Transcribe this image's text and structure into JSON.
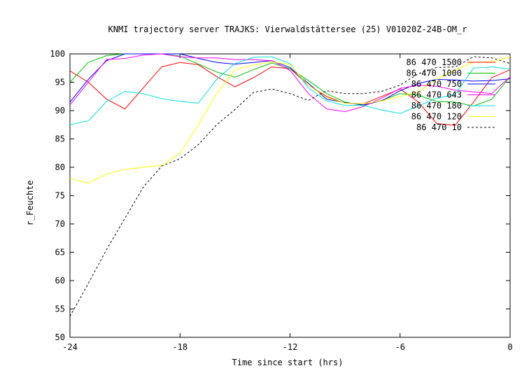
{
  "chart_data": {
    "type": "line",
    "title": "KNMI trajectory server TRAJKS: Vierwaldstättersee (25) V01020Z-24B-OM_r",
    "xlabel": "Time since start (hrs)",
    "ylabel": "r_Feuchte",
    "xlim": [
      -24,
      0
    ],
    "ylim": [
      50,
      100
    ],
    "xticks": [
      -24,
      -18,
      -12,
      -6,
      0
    ],
    "yticks": [
      50,
      55,
      60,
      65,
      70,
      75,
      80,
      85,
      90,
      95,
      100
    ],
    "legend_position": "top-right",
    "grid": false,
    "x": [
      -24,
      -23,
      -22,
      -21,
      -20,
      -19,
      -18,
      -17,
      -16,
      -15,
      -14,
      -13,
      -12,
      -11,
      -10,
      -9,
      -8,
      -7,
      -6,
      -5,
      -4,
      -3,
      -2,
      -1,
      0
    ],
    "series": [
      {
        "name": "86 470 1500",
        "color": "#ff0000",
        "values": [
          97,
          95,
          92,
          90.3,
          94,
          97.7,
          98.5,
          98.1,
          96,
          94.2,
          95.8,
          97.7,
          97.4,
          94.5,
          92.5,
          91.3,
          91.2,
          92.5,
          93.8,
          91.5,
          87.7,
          87.4,
          91.5,
          95.8,
          97.2
        ]
      },
      {
        "name": "86 470 1000",
        "color": "#00c000",
        "values": [
          95,
          98.5,
          99.7,
          100,
          100,
          100,
          99.6,
          98.2,
          96.8,
          95.9,
          97.2,
          98.4,
          97.4,
          95.3,
          93,
          91.5,
          90.9,
          91.8,
          93,
          92.7,
          91.6,
          91.5,
          90.8,
          92,
          96
        ]
      },
      {
        "name": "86 470 750",
        "color": "#0000ff",
        "values": [
          91.5,
          95.5,
          98.8,
          100,
          100,
          100,
          100,
          99.2,
          98.5,
          98.2,
          98.5,
          98.8,
          97.6,
          94.8,
          92,
          91.4,
          91,
          91.7,
          93.5,
          94.8,
          95.5,
          95.4,
          95.2,
          95.3,
          95.6
        ]
      },
      {
        "name": "86 470 643",
        "color": "#ff00ff",
        "values": [
          91,
          95,
          99,
          99.2,
          99.8,
          100,
          99.5,
          99.3,
          99.3,
          99,
          99,
          98.8,
          97.1,
          93,
          90.3,
          89.8,
          90.7,
          92.2,
          93.9,
          94.5,
          94.3,
          93.6,
          93.3,
          93,
          96
        ]
      },
      {
        "name": "86 470 180",
        "color": "#00e0e0",
        "values": [
          87.5,
          88.2,
          91.6,
          93.4,
          93,
          92.1,
          91.6,
          91.3,
          95.5,
          98.3,
          99.4,
          99.5,
          98.3,
          94,
          91.7,
          90.9,
          90.9,
          90.1,
          89.5,
          90.8,
          92.2,
          92.8,
          97.5,
          97.7,
          97.3
        ]
      },
      {
        "name": "86 470 120",
        "color": "#ffff00",
        "values": [
          78,
          77.2,
          78.8,
          79.6,
          80,
          80.3,
          82.5,
          87.5,
          93,
          97.2,
          98,
          98.6,
          98.1,
          94.5,
          92.3,
          91.3,
          91.2,
          91.7,
          92.5,
          93.3,
          95.5,
          97.2,
          98.5,
          98.6,
          99.5
        ]
      },
      {
        "name": "86 470 10",
        "color": "#000000",
        "values": [
          53.7,
          59.5,
          65.5,
          71,
          76.5,
          80.2,
          81.5,
          84,
          87.5,
          90.2,
          93.2,
          93.8,
          93,
          91.8,
          93.5,
          93,
          93,
          93.4,
          94.5,
          96.5,
          97.6,
          97.7,
          99.5,
          99.3,
          98.3
        ]
      }
    ]
  }
}
